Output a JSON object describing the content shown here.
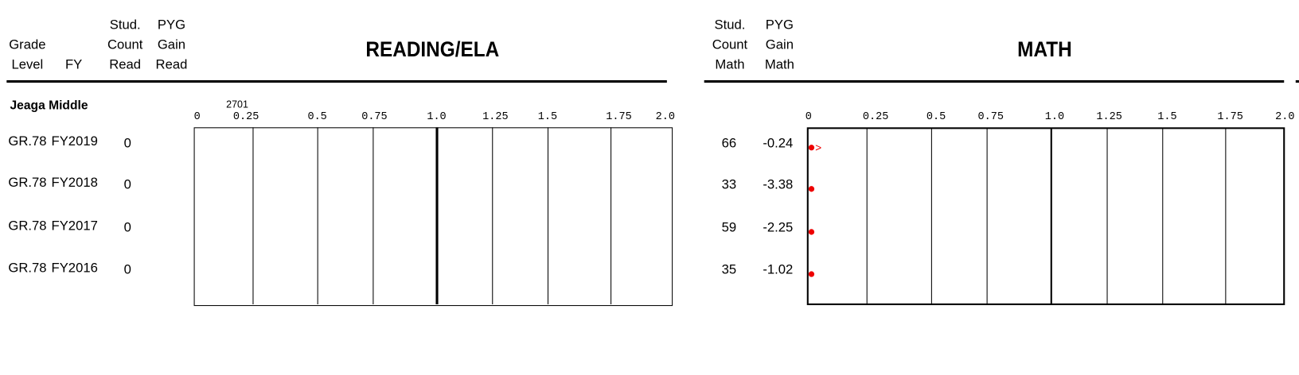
{
  "header": {
    "grade_level": [
      "Grade",
      "Level"
    ],
    "fy": "FY",
    "stud_count_read": [
      "Stud.",
      "Count",
      "Read"
    ],
    "pyg_gain_read": [
      "PYG",
      "Gain",
      "Read"
    ],
    "reading_title": "READING/ELA",
    "stud_count_math": [
      "Stud.",
      "Count",
      "Math"
    ],
    "pyg_gain_math": [
      "PYG",
      "Gain",
      "Math"
    ],
    "math_title": "MATH"
  },
  "school": "Jeaga Middle",
  "scale": {
    "ticks": [
      "0",
      "0.25",
      "0.5",
      "0.75",
      "1.0",
      "1.25",
      "1.5",
      "1.75",
      "2.0"
    ],
    "note": "2701"
  },
  "rows": [
    {
      "grade": "GR.78",
      "fy": "FY2019",
      "count_read": 0,
      "count_math": 66,
      "gain_math": -0.24
    },
    {
      "grade": "GR.78",
      "fy": "FY2018",
      "count_read": 0,
      "count_math": 33,
      "gain_math": -3.38
    },
    {
      "grade": "GR.78",
      "fy": "FY2017",
      "count_read": 0,
      "count_math": 59,
      "gain_math": -2.25
    },
    {
      "grade": "GR.78",
      "fy": "FY2016",
      "count_read": 0,
      "count_math": 35,
      "gain_math": -1.02
    }
  ]
}
